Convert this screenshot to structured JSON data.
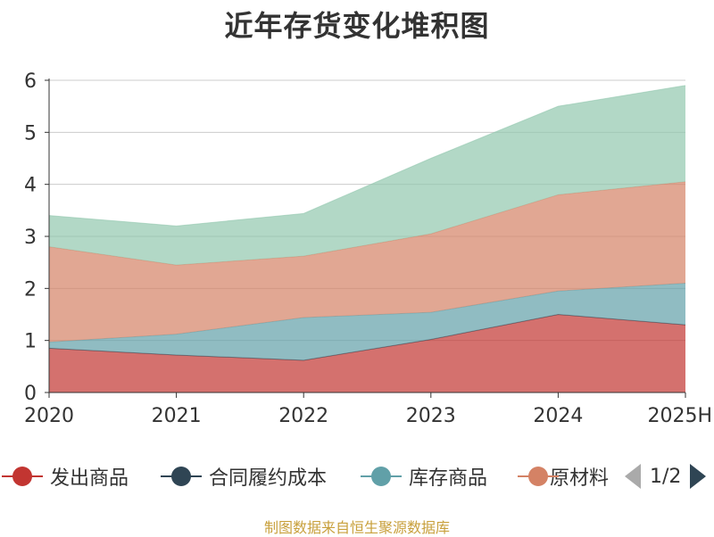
{
  "title": "近年存货变化堆积图",
  "source": "制图数据来自恒生聚源数据库",
  "pager": {
    "text": "1/2"
  },
  "legend": [
    {
      "name": "发出商品",
      "color": "#c23531"
    },
    {
      "name": "合同履约成本",
      "color": "#2f4554"
    },
    {
      "name": "库存商品",
      "color": "#61a0a8"
    },
    {
      "name": "原材料",
      "color": "#d48265"
    }
  ],
  "chart_data": {
    "type": "area",
    "stacked": true,
    "title": "近年存货变化堆积图",
    "categories": [
      "2020",
      "2021",
      "2022",
      "2023",
      "2024",
      "2025H"
    ],
    "ylim": [
      0,
      6
    ],
    "yticks": [
      "0",
      "1",
      "2",
      "3",
      "4",
      "5",
      "6"
    ],
    "grid": true,
    "series": [
      {
        "name": "发出商品",
        "color": "#c23531",
        "values": [
          0.85,
          0.72,
          0.62,
          1.02,
          1.5,
          1.3
        ]
      },
      {
        "name": "合同履约成本",
        "color": "#2f4554",
        "values": [
          0,
          0,
          0,
          0,
          0,
          0
        ]
      },
      {
        "name": "库存商品",
        "color": "#61a0a8",
        "values": [
          0.12,
          0.4,
          0.82,
          0.52,
          0.45,
          0.8
        ]
      },
      {
        "name": "原材料",
        "color": "#d48265",
        "values": [
          1.83,
          1.33,
          1.18,
          1.51,
          1.85,
          1.95
        ]
      },
      {
        "name": "",
        "color": "#91c7ae",
        "values": [
          0.6,
          0.75,
          0.82,
          1.45,
          1.7,
          1.85
        ]
      }
    ]
  }
}
